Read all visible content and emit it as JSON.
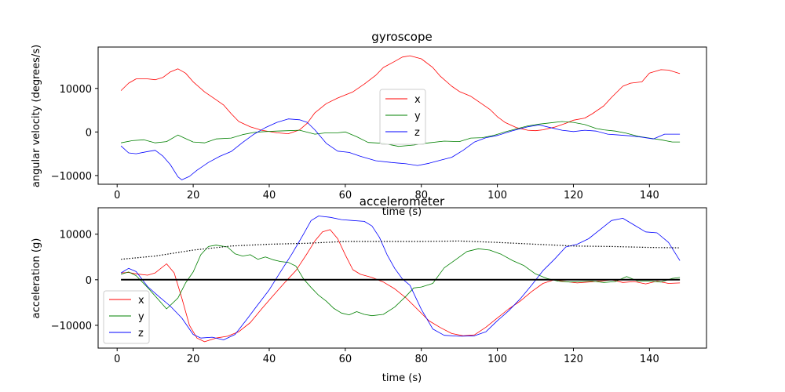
{
  "chart_data": [
    {
      "type": "line",
      "title": "gyroscope",
      "xlabel": "time (s)",
      "ylabel": "angular velocity (degrees/s)",
      "xlim": [
        -5,
        155
      ],
      "ylim": [
        -12000,
        19500
      ],
      "xticks": [
        0,
        20,
        40,
        60,
        80,
        100,
        120,
        140
      ],
      "yticks": [
        -10000,
        0,
        10000
      ],
      "legend": "center",
      "series": [
        {
          "name": "x",
          "color": "#ff0000",
          "x": [
            1,
            3,
            5,
            8,
            10,
            12,
            14,
            16,
            18,
            20,
            23,
            26,
            28,
            30,
            32,
            35,
            38,
            42,
            45,
            48,
            50,
            52,
            55,
            58,
            60,
            62,
            65,
            68,
            70,
            73,
            75,
            77,
            80,
            83,
            85,
            88,
            90,
            93,
            95,
            98,
            100,
            102,
            105,
            108,
            110,
            112,
            115,
            118,
            120,
            123,
            125,
            128,
            130,
            133,
            135,
            138,
            140,
            143,
            145,
            148
          ],
          "values": [
            9500,
            11200,
            12200,
            12200,
            12000,
            12500,
            13800,
            14500,
            13500,
            11500,
            9200,
            7400,
            6200,
            4200,
            2400,
            1200,
            400,
            -200,
            -400,
            500,
            2000,
            4400,
            6500,
            7800,
            8500,
            9200,
            11000,
            13000,
            14800,
            16200,
            17200,
            17500,
            16800,
            14800,
            12800,
            10500,
            9300,
            8200,
            7000,
            5200,
            3500,
            2200,
            1000,
            400,
            300,
            500,
            1100,
            2000,
            2700,
            3200,
            4200,
            6000,
            7900,
            10500,
            11200,
            11500,
            13500,
            14300,
            14200,
            13400
          ]
        },
        {
          "name": "y",
          "color": "#008000",
          "x": [
            1,
            4,
            7,
            10,
            13,
            16,
            18,
            20,
            23,
            26,
            30,
            33,
            36,
            39,
            42,
            45,
            48,
            52,
            55,
            58,
            60,
            63,
            66,
            70,
            74,
            78,
            82,
            86,
            90,
            93,
            96,
            99,
            102,
            105,
            108,
            111,
            114,
            117,
            120,
            123,
            126,
            128,
            131,
            134,
            137,
            140,
            143,
            146,
            148
          ],
          "values": [
            -2500,
            -2000,
            -1800,
            -2500,
            -2200,
            -700,
            -1500,
            -2300,
            -2500,
            -1600,
            -1400,
            -600,
            -100,
            100,
            200,
            300,
            400,
            -500,
            -200,
            -200,
            0,
            -1100,
            -2400,
            -2600,
            -3300,
            -3000,
            -2500,
            -2100,
            -2200,
            -1400,
            -1300,
            -800,
            0,
            700,
            1400,
            1800,
            2100,
            2400,
            2200,
            1700,
            800,
            500,
            200,
            -300,
            -1000,
            -1400,
            -1800,
            -2300,
            -2300
          ]
        },
        {
          "name": "z",
          "color": "#0000ff",
          "x": [
            1,
            3,
            5,
            8,
            10,
            12,
            14,
            16,
            17,
            19,
            21,
            24,
            27,
            30,
            33,
            36,
            39,
            42,
            45,
            48,
            50,
            52,
            55,
            58,
            61,
            64,
            68,
            72,
            76,
            79,
            82,
            85,
            88,
            91,
            94,
            97,
            100,
            104,
            108,
            111,
            114,
            117,
            120,
            123,
            126,
            129,
            132,
            135,
            138,
            141,
            144,
            148
          ],
          "values": [
            -3200,
            -4800,
            -5000,
            -4500,
            -4200,
            -5500,
            -7500,
            -10300,
            -11000,
            -10200,
            -8800,
            -7000,
            -5600,
            -4500,
            -2400,
            -500,
            1000,
            2200,
            3000,
            2800,
            2200,
            500,
            -2600,
            -4400,
            -4700,
            -5600,
            -6600,
            -7000,
            -7300,
            -7700,
            -7200,
            -6500,
            -5800,
            -4200,
            -2300,
            -1300,
            -800,
            300,
            1200,
            1600,
            1000,
            400,
            100,
            400,
            200,
            -500,
            -700,
            -900,
            -1200,
            -1600,
            -500,
            -500
          ]
        }
      ]
    },
    {
      "type": "line",
      "title": "accelerometer",
      "xlabel": "time (s)",
      "ylabel": "acceleration (g)",
      "xlim": [
        -5,
        155
      ],
      "ylim": [
        -15000,
        15800
      ],
      "xticks": [
        0,
        20,
        40,
        60,
        80,
        100,
        120,
        140
      ],
      "yticks": [
        -10000,
        0,
        10000
      ],
      "legend": "lower-left",
      "series": [
        {
          "name": "x",
          "color": "#ff0000",
          "x": [
            1,
            3,
            5,
            8,
            10,
            13,
            15,
            17,
            19,
            21,
            23,
            26,
            29,
            32,
            35,
            38,
            41,
            44,
            47,
            50,
            52,
            54,
            56,
            58,
            60,
            62,
            64,
            67,
            70,
            73,
            76,
            79,
            82,
            85,
            88,
            91,
            94,
            97,
            100,
            103,
            106,
            109,
            112,
            115,
            118,
            121,
            124,
            127,
            130,
            133,
            136,
            139,
            142,
            145,
            148
          ],
          "values": [
            1500,
            1600,
            1300,
            1000,
            1500,
            3500,
            1500,
            -4000,
            -10000,
            -12800,
            -13600,
            -12800,
            -12400,
            -11400,
            -9400,
            -6400,
            -3500,
            -700,
            2000,
            5800,
            8500,
            10500,
            11000,
            9000,
            5500,
            2200,
            1200,
            500,
            -500,
            -2000,
            -4000,
            -6500,
            -9000,
            -10500,
            -11800,
            -12300,
            -12100,
            -10400,
            -8400,
            -6400,
            -4700,
            -2600,
            -800,
            0,
            -400,
            -700,
            -500,
            -300,
            0,
            -600,
            -400,
            -900,
            -300,
            -800,
            -700
          ]
        },
        {
          "name": "y",
          "color": "#008000",
          "x": [
            1,
            3,
            5,
            8,
            11,
            13,
            16,
            18,
            20,
            22,
            24,
            26,
            29,
            31,
            33,
            35,
            37,
            39,
            41,
            43,
            45,
            47,
            49,
            51,
            53,
            55,
            57,
            59,
            61,
            63,
            65,
            67,
            70,
            73,
            76,
            78,
            80,
            83,
            86,
            89,
            92,
            95,
            98,
            101,
            104,
            107,
            110,
            113,
            116,
            119,
            122,
            125,
            128,
            131,
            134,
            137,
            140,
            143,
            146,
            148
          ],
          "values": [
            1200,
            1700,
            900,
            -1700,
            -4500,
            -6400,
            -4000,
            -700,
            1700,
            5500,
            7300,
            7600,
            7200,
            5700,
            5200,
            5500,
            4500,
            5000,
            4400,
            4000,
            3800,
            3000,
            200,
            -1700,
            -3400,
            -4700,
            -6300,
            -7300,
            -7700,
            -7000,
            -7600,
            -7900,
            -7600,
            -6000,
            -3600,
            -1800,
            -1600,
            -800,
            2600,
            4400,
            6200,
            6800,
            6500,
            5600,
            4200,
            3100,
            1300,
            300,
            -300,
            -500,
            -400,
            -300,
            -600,
            -400,
            700,
            -300,
            -300,
            -500,
            300,
            500
          ]
        },
        {
          "name": "z",
          "color": "#0000ff",
          "x": [
            1,
            3,
            5,
            8,
            11,
            14,
            17,
            20,
            22,
            25,
            28,
            31,
            34,
            37,
            40,
            43,
            46,
            49,
            51,
            53,
            56,
            59,
            62,
            65,
            67,
            69,
            71,
            73,
            75,
            77,
            80,
            83,
            86,
            90,
            94,
            97,
            100,
            103,
            106,
            109,
            112,
            115,
            118,
            121,
            124,
            127,
            130,
            133,
            136,
            139,
            142,
            145,
            148
          ],
          "values": [
            1500,
            2500,
            1800,
            -1500,
            -3700,
            -5800,
            -8400,
            -12000,
            -12800,
            -12600,
            -13200,
            -12000,
            -8800,
            -5500,
            -2200,
            1800,
            5700,
            10000,
            13000,
            14000,
            13700,
            13200,
            13000,
            12800,
            11800,
            9300,
            5500,
            2500,
            200,
            -1200,
            -6500,
            -10800,
            -12200,
            -12400,
            -12300,
            -11400,
            -9000,
            -6800,
            -4200,
            -1200,
            2000,
            4500,
            7200,
            7800,
            9000,
            11000,
            13000,
            13500,
            12000,
            10500,
            10300,
            8200,
            4200
          ]
        },
        {
          "name": "",
          "color": "#000000",
          "style": "dotted",
          "x": [
            1,
            10,
            20,
            30,
            40,
            50,
            60,
            70,
            80,
            90,
            100,
            110,
            120,
            130,
            140,
            148
          ],
          "values": [
            4500,
            5200,
            6500,
            7400,
            7800,
            8000,
            8400,
            8400,
            8400,
            8500,
            8200,
            7800,
            7400,
            7300,
            7100,
            7000
          ]
        },
        {
          "name": "",
          "color": "#000000",
          "style": "solid-thick",
          "x": [
            1,
            148
          ],
          "values": [
            0,
            0
          ]
        }
      ]
    }
  ]
}
